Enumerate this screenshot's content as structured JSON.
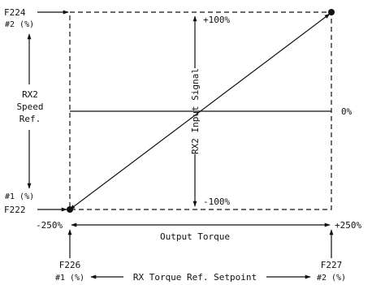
{
  "colors": {
    "ink": "#111111",
    "background": "#ffffff"
  },
  "labels": {
    "f224": "F224",
    "f224_sub": "#2 (%)",
    "f222": "F222",
    "f222_sub": "#1 (%)",
    "speed_ref_1": "RX2",
    "speed_ref_2": "Speed",
    "speed_ref_3": "Ref.",
    "plus_100": "+100%",
    "minus_100": "-100%",
    "zero": "0%",
    "input_signal": "RX2 Input Signal",
    "minus_250": "-250%",
    "plus_250": "+250%",
    "output_torque": "Output Torque",
    "f226": "F226",
    "f226_sub": "#1 (%)",
    "f227": "F227",
    "f227_sub": "#2 (%)",
    "setpoint": "RX Torque Ref. Setpoint"
  }
}
